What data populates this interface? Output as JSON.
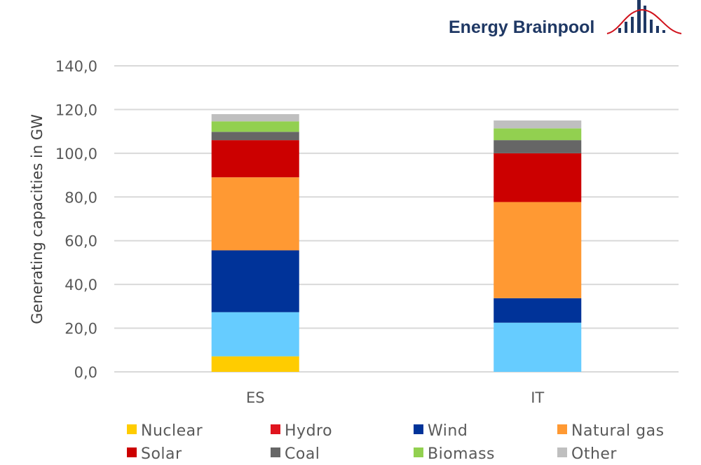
{
  "brand": {
    "name": "Energy Brainpool",
    "primary_color": "#1f3864",
    "accent_color": "#d0111b"
  },
  "chart_data": {
    "type": "bar",
    "stacked": true,
    "title": "",
    "xlabel": "",
    "ylabel": "Generating capacities in GW",
    "ylim": [
      0,
      140
    ],
    "yticks": [
      "0,0",
      "20,0",
      "40,0",
      "60,0",
      "80,0",
      "100,0",
      "120,0",
      "140,0"
    ],
    "ytick_values": [
      0,
      20,
      40,
      60,
      80,
      100,
      120,
      140
    ],
    "grid": true,
    "categories": [
      "ES",
      "IT"
    ],
    "legend_position": "bottom",
    "series": [
      {
        "name": "Nuclear",
        "color": "#ffcc00",
        "legend_color": "#ffcc00",
        "values": [
          7.1,
          0.0
        ]
      },
      {
        "name": "Hydro",
        "color": "#66ccff",
        "legend_color": "#e0141e",
        "values": [
          20.2,
          22.5
        ]
      },
      {
        "name": "Wind",
        "color": "#003399",
        "legend_color": "#003399",
        "values": [
          28.3,
          11.2
        ]
      },
      {
        "name": "Natural gas",
        "color": "#ff9933",
        "legend_color": "#ff9933",
        "values": [
          33.4,
          44.0
        ]
      },
      {
        "name": "Solar",
        "color": "#cc0000",
        "legend_color": "#cc0000",
        "values": [
          17.0,
          22.3
        ]
      },
      {
        "name": "Coal",
        "color": "#666666",
        "legend_color": "#666666",
        "values": [
          3.8,
          6.0
        ]
      },
      {
        "name": "Biomass",
        "color": "#92d050",
        "legend_color": "#92d050",
        "values": [
          4.8,
          5.4
        ]
      },
      {
        "name": "Other",
        "color": "#bfbfbf",
        "legend_color": "#bfbfbf",
        "values": [
          3.3,
          3.6
        ]
      }
    ]
  }
}
